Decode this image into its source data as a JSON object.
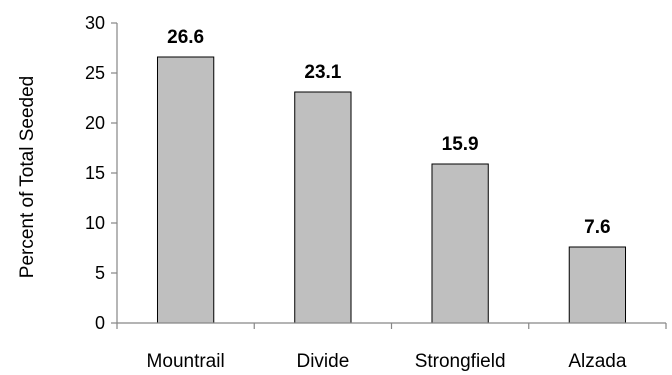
{
  "chart_data": {
    "type": "bar",
    "categories": [
      "Mountrail",
      "Divide",
      "Strongfield",
      "Alzada"
    ],
    "values": [
      26.6,
      23.1,
      15.9,
      7.6
    ],
    "data_labels": [
      "26.6",
      "23.1",
      "15.9",
      "7.6"
    ],
    "title": "",
    "xlabel": "",
    "ylabel": "Percent of Total Seeded",
    "ylim": [
      0,
      30
    ],
    "yticks": [
      0,
      5,
      10,
      15,
      20,
      25,
      30
    ],
    "grid": false,
    "legend": "none",
    "bar_color": "#BFBFBF",
    "bar_edge_color": "#000000"
  }
}
